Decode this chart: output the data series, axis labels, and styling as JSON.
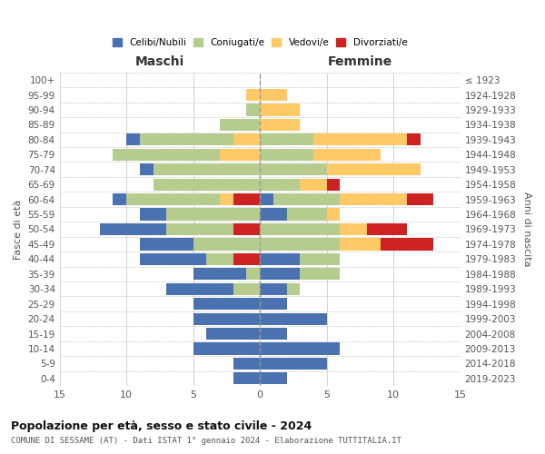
{
  "age_groups": [
    "0-4",
    "5-9",
    "10-14",
    "15-19",
    "20-24",
    "25-29",
    "30-34",
    "35-39",
    "40-44",
    "45-49",
    "50-54",
    "55-59",
    "60-64",
    "65-69",
    "70-74",
    "75-79",
    "80-84",
    "85-89",
    "90-94",
    "95-99",
    "100+"
  ],
  "birth_years": [
    "2019-2023",
    "2014-2018",
    "2009-2013",
    "2004-2008",
    "1999-2003",
    "1994-1998",
    "1989-1993",
    "1984-1988",
    "1979-1983",
    "1974-1978",
    "1969-1973",
    "1964-1968",
    "1959-1963",
    "1954-1958",
    "1949-1953",
    "1944-1948",
    "1939-1943",
    "1934-1938",
    "1929-1933",
    "1924-1928",
    "≤ 1923"
  ],
  "maschi": {
    "celibi": [
      2,
      2,
      5,
      4,
      5,
      5,
      5,
      4,
      5,
      4,
      5,
      2,
      1,
      0,
      1,
      0,
      1,
      0,
      0,
      0,
      0
    ],
    "coniugati": [
      0,
      0,
      0,
      0,
      0,
      0,
      2,
      1,
      2,
      5,
      5,
      7,
      7,
      8,
      8,
      8,
      7,
      3,
      1,
      0,
      0
    ],
    "vedovi": [
      0,
      0,
      0,
      0,
      0,
      0,
      0,
      0,
      0,
      0,
      0,
      0,
      1,
      0,
      0,
      3,
      2,
      0,
      0,
      1,
      0
    ],
    "divorziati": [
      0,
      0,
      0,
      0,
      0,
      0,
      0,
      0,
      2,
      0,
      2,
      0,
      2,
      0,
      0,
      0,
      0,
      0,
      0,
      0,
      0
    ]
  },
  "femmine": {
    "nubili": [
      2,
      5,
      6,
      2,
      5,
      2,
      2,
      3,
      3,
      0,
      0,
      2,
      1,
      0,
      0,
      0,
      0,
      0,
      0,
      0,
      0
    ],
    "coniugate": [
      0,
      0,
      0,
      0,
      0,
      0,
      1,
      3,
      3,
      6,
      6,
      3,
      5,
      3,
      5,
      4,
      4,
      0,
      0,
      0,
      0
    ],
    "vedove": [
      0,
      0,
      0,
      0,
      0,
      0,
      0,
      0,
      0,
      3,
      2,
      1,
      5,
      2,
      7,
      5,
      7,
      3,
      3,
      2,
      0
    ],
    "divorziate": [
      0,
      0,
      0,
      0,
      0,
      0,
      0,
      0,
      0,
      4,
      3,
      0,
      2,
      1,
      0,
      0,
      1,
      0,
      0,
      0,
      0
    ]
  },
  "colors": {
    "celibi_nubili": "#4a72b0",
    "coniugati": "#b5cc8e",
    "vedovi": "#ffc966",
    "divorziati": "#cc2222"
  },
  "title": "Popolazione per età, sesso e stato civile - 2024",
  "subtitle": "COMUNE DI SESSAME (AT) - Dati ISTAT 1° gennaio 2024 - Elaborazione TUTTITALIA.IT",
  "xlabel_left": "Maschi",
  "xlabel_right": "Femmine",
  "ylabel_left": "Fasce di età",
  "ylabel_right": "Anni di nascita",
  "xlim": 15,
  "bg_color": "#ffffff",
  "grid_color": "#cccccc"
}
